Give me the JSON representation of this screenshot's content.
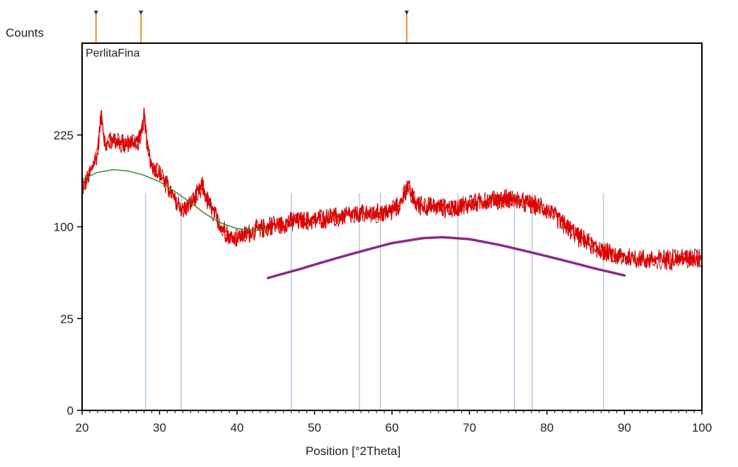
{
  "chart_data": {
    "type": "line",
    "title": "",
    "sample_name": "PerlitaFina",
    "ylabel": "Counts",
    "xlabel": "Position [°2Theta]",
    "xlim": [
      20,
      100
    ],
    "ylim": [
      0,
      400
    ],
    "y_scale": "sqrt",
    "x_ticks": [
      20,
      30,
      40,
      50,
      60,
      70,
      80,
      90,
      100
    ],
    "y_ticks": [
      0,
      25,
      100,
      225
    ],
    "grid": false,
    "colors": {
      "pattern": "#e00000",
      "pattern_dark": "#9a0000",
      "background_fit": "#3a8a2a",
      "hump": "#8b2a8b",
      "reference_lines": "#9fbfdd",
      "top_markers": "#e8922a",
      "frame": "#000000"
    },
    "series": [
      {
        "role": "measured_pattern",
        "x": [
          20,
          21,
          22,
          22.5,
          23,
          24,
          25,
          26,
          27,
          27.5,
          28,
          28.5,
          29,
          30,
          31,
          32,
          33,
          34,
          35,
          35.5,
          36,
          37,
          38,
          39,
          40,
          42,
          44,
          46,
          48,
          50,
          52,
          54,
          56,
          58,
          60,
          61,
          62,
          62.5,
          63,
          64,
          66,
          68,
          70,
          72,
          74,
          75,
          76,
          77,
          78,
          80,
          82,
          84,
          86,
          88,
          90,
          92,
          94,
          96,
          98,
          100
        ],
        "y": [
          145,
          165,
          195,
          265,
          205,
          220,
          210,
          212,
          215,
          220,
          255,
          200,
          180,
          165,
          150,
          130,
          120,
          125,
          140,
          150,
          135,
          115,
          100,
          90,
          88,
          95,
          100,
          104,
          106,
          108,
          110,
          112,
          114,
          115,
          118,
          125,
          150,
          138,
          128,
          124,
          122,
          122,
          126,
          130,
          132,
          134,
          131,
          128,
          126,
          120,
          105,
          90,
          80,
          73,
          70,
          68,
          68,
          68,
          69,
          70
        ]
      },
      {
        "role": "background",
        "x": [
          20,
          22,
          24,
          26,
          28,
          30,
          32,
          34,
          36,
          38,
          40,
          42,
          44
        ],
        "y": [
          158,
          168,
          172,
          170,
          164,
          155,
          142,
          128,
          114,
          104,
          98,
          96,
          97
        ]
      },
      {
        "role": "amorphous_hump",
        "x": [
          44,
          48,
          52,
          56,
          60,
          64,
          66.5,
          70,
          74,
          78,
          82,
          86,
          90
        ],
        "y": [
          52,
          59,
          67,
          75,
          83,
          88,
          89,
          87,
          81,
          74,
          67,
          60,
          54
        ]
      }
    ],
    "reference_lines_x": [
      28.2,
      32.8,
      47.0,
      55.8,
      58.5,
      68.5,
      75.8,
      78.1,
      87.3
    ],
    "top_markers_x": [
      21.8,
      27.6,
      61.9
    ]
  }
}
